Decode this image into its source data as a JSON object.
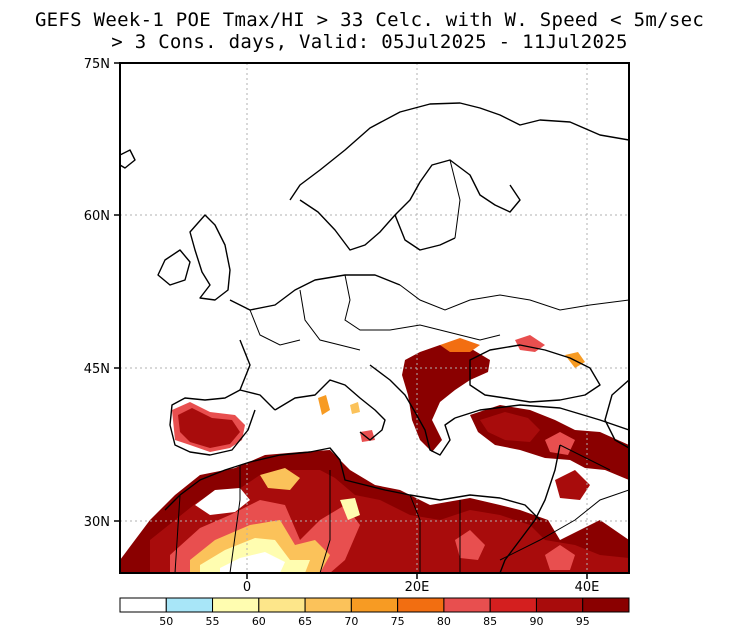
{
  "title": {
    "line1": "GEFS Week-1 POE Tmax/HI > 33 Celc. with W. Speed < 5m/sec",
    "line2": "> 3 Cons. days, Valid: 05Jul2025 - 11Jul2025"
  },
  "axes": {
    "lat_labels": [
      "75N",
      "60N",
      "45N",
      "30N"
    ],
    "lon_labels": [
      "0",
      "20E",
      "40E"
    ]
  },
  "colorbar": {
    "labels": [
      "50",
      "55",
      "60",
      "65",
      "70",
      "75",
      "80",
      "85",
      "90",
      "95"
    ],
    "colors": [
      "#ffffff",
      "#a8e6f8",
      "#fffdb0",
      "#fde68a",
      "#fbc25a",
      "#f79b23",
      "#f26e11",
      "#e84f4f",
      "#d41f1f",
      "#a80c0c",
      "#8a0000"
    ]
  },
  "colors": {
    "frame": "#000000",
    "grid": "#b0b0b0",
    "coast": "#000000"
  }
}
